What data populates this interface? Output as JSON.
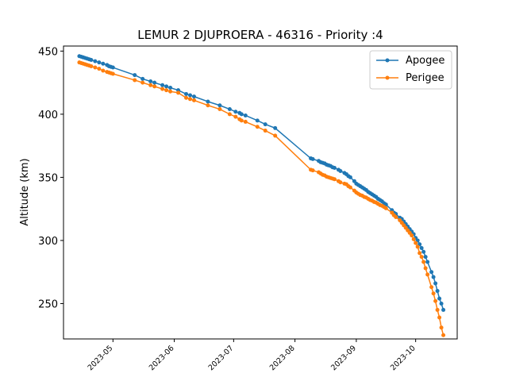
{
  "chart_data": {
    "type": "line",
    "title": "LEMUR 2 DJUPROERA - 46316 - Priority :4",
    "xlabel": "",
    "ylabel": "Altitude (km)",
    "x_tick_labels": [
      "2023-05",
      "2023-06",
      "2023-07",
      "2023-08",
      "2023-09",
      "2023-10"
    ],
    "y_ticks": [
      250,
      300,
      350,
      400,
      450
    ],
    "xlim": [
      "2023-04-06",
      "2023-10-22"
    ],
    "ylim": [
      222,
      454
    ],
    "legend_position": "upper right",
    "series": [
      {
        "name": "Apogee",
        "color": "#1f77b4",
        "points": [
          [
            "2023-04-14",
            446
          ],
          [
            "2023-04-15",
            445.5
          ],
          [
            "2023-04-16",
            445
          ],
          [
            "2023-04-17",
            444.5
          ],
          [
            "2023-04-18",
            444
          ],
          [
            "2023-04-19",
            443.5
          ],
          [
            "2023-04-20",
            443
          ],
          [
            "2023-04-22",
            442
          ],
          [
            "2023-04-24",
            441
          ],
          [
            "2023-04-26",
            440
          ],
          [
            "2023-04-28",
            439
          ],
          [
            "2023-04-29",
            438
          ],
          [
            "2023-04-30",
            437.5
          ],
          [
            "2023-05-01",
            437
          ],
          [
            "2023-05-12",
            431
          ],
          [
            "2023-05-16",
            428
          ],
          [
            "2023-05-20",
            426
          ],
          [
            "2023-05-22",
            425
          ],
          [
            "2023-05-26",
            423
          ],
          [
            "2023-05-28",
            422
          ],
          [
            "2023-05-30",
            421
          ],
          [
            "2023-06-03",
            419
          ],
          [
            "2023-06-07",
            416
          ],
          [
            "2023-06-09",
            415
          ],
          [
            "2023-06-11",
            414
          ],
          [
            "2023-06-18",
            410
          ],
          [
            "2023-06-24",
            407
          ],
          [
            "2023-06-29",
            404
          ],
          [
            "2023-07-02",
            402
          ],
          [
            "2023-07-04",
            401
          ],
          [
            "2023-07-05",
            400
          ],
          [
            "2023-07-07",
            399
          ],
          [
            "2023-07-13",
            395
          ],
          [
            "2023-07-17",
            392
          ],
          [
            "2023-07-22",
            389
          ],
          [
            "2023-08-09",
            365
          ],
          [
            "2023-08-10",
            364.5
          ],
          [
            "2023-08-13",
            363
          ],
          [
            "2023-08-14",
            362
          ],
          [
            "2023-08-15",
            361.5
          ],
          [
            "2023-08-16",
            361
          ],
          [
            "2023-08-17",
            360
          ],
          [
            "2023-08-18",
            359.5
          ],
          [
            "2023-08-19",
            359
          ],
          [
            "2023-08-20",
            358
          ],
          [
            "2023-08-21",
            357.5
          ],
          [
            "2023-08-23",
            356
          ],
          [
            "2023-08-24",
            355
          ],
          [
            "2023-08-26",
            353.5
          ],
          [
            "2023-08-27",
            352.5
          ],
          [
            "2023-08-28",
            351
          ],
          [
            "2023-08-29",
            350
          ],
          [
            "2023-08-31",
            347
          ],
          [
            "2023-09-01",
            345
          ],
          [
            "2023-09-02",
            344
          ],
          [
            "2023-09-03",
            343
          ],
          [
            "2023-09-04",
            342
          ],
          [
            "2023-09-05",
            341
          ],
          [
            "2023-09-06",
            340
          ],
          [
            "2023-09-07",
            338.5
          ],
          [
            "2023-09-08",
            337.5
          ],
          [
            "2023-09-09",
            336.5
          ],
          [
            "2023-09-10",
            335.5
          ],
          [
            "2023-09-11",
            334.5
          ],
          [
            "2023-09-12",
            333
          ],
          [
            "2023-09-13",
            332
          ],
          [
            "2023-09-14",
            331
          ],
          [
            "2023-09-15",
            329.5
          ],
          [
            "2023-09-16",
            328.5
          ],
          [
            "2023-09-19",
            324
          ],
          [
            "2023-09-20",
            322
          ],
          [
            "2023-09-21",
            321
          ],
          [
            "2023-09-23",
            318
          ],
          [
            "2023-09-24",
            317
          ],
          [
            "2023-09-25",
            315
          ],
          [
            "2023-09-26",
            313
          ],
          [
            "2023-09-27",
            311
          ],
          [
            "2023-09-28",
            309
          ],
          [
            "2023-09-29",
            307
          ],
          [
            "2023-09-30",
            305
          ],
          [
            "2023-10-01",
            302
          ],
          [
            "2023-10-02",
            300
          ],
          [
            "2023-10-03",
            297
          ],
          [
            "2023-10-04",
            294
          ],
          [
            "2023-10-05",
            291
          ],
          [
            "2023-10-06",
            287
          ],
          [
            "2023-10-07",
            283
          ],
          [
            "2023-10-09",
            275
          ],
          [
            "2023-10-10",
            271
          ],
          [
            "2023-10-11",
            266
          ],
          [
            "2023-10-12",
            260
          ],
          [
            "2023-10-13",
            254
          ],
          [
            "2023-10-14",
            250
          ],
          [
            "2023-10-15",
            245
          ]
        ]
      },
      {
        "name": "Perigee",
        "color": "#ff7f0e",
        "points": [
          [
            "2023-04-14",
            441
          ],
          [
            "2023-04-15",
            440.5
          ],
          [
            "2023-04-16",
            440
          ],
          [
            "2023-04-17",
            439.5
          ],
          [
            "2023-04-18",
            439
          ],
          [
            "2023-04-19",
            438.5
          ],
          [
            "2023-04-20",
            438
          ],
          [
            "2023-04-22",
            437
          ],
          [
            "2023-04-24",
            436
          ],
          [
            "2023-04-26",
            434.5
          ],
          [
            "2023-04-28",
            433.5
          ],
          [
            "2023-04-29",
            433
          ],
          [
            "2023-04-30",
            432.5
          ],
          [
            "2023-05-01",
            432
          ],
          [
            "2023-05-12",
            427
          ],
          [
            "2023-05-16",
            425
          ],
          [
            "2023-05-20",
            423
          ],
          [
            "2023-05-22",
            422
          ],
          [
            "2023-05-26",
            420
          ],
          [
            "2023-05-28",
            419
          ],
          [
            "2023-05-30",
            418
          ],
          [
            "2023-06-03",
            417
          ],
          [
            "2023-06-07",
            413
          ],
          [
            "2023-06-09",
            412
          ],
          [
            "2023-06-11",
            411
          ],
          [
            "2023-06-18",
            407
          ],
          [
            "2023-06-24",
            404
          ],
          [
            "2023-06-29",
            400
          ],
          [
            "2023-07-02",
            398
          ],
          [
            "2023-07-04",
            396
          ],
          [
            "2023-07-05",
            395
          ],
          [
            "2023-07-07",
            394
          ],
          [
            "2023-07-13",
            390
          ],
          [
            "2023-07-17",
            387
          ],
          [
            "2023-07-22",
            383
          ],
          [
            "2023-08-09",
            356
          ],
          [
            "2023-08-10",
            355.5
          ],
          [
            "2023-08-13",
            354
          ],
          [
            "2023-08-14",
            353
          ],
          [
            "2023-08-15",
            352
          ],
          [
            "2023-08-16",
            351.5
          ],
          [
            "2023-08-17",
            350.5
          ],
          [
            "2023-08-18",
            350
          ],
          [
            "2023-08-19",
            349.5
          ],
          [
            "2023-08-20",
            349
          ],
          [
            "2023-08-21",
            348.5
          ],
          [
            "2023-08-23",
            347
          ],
          [
            "2023-08-24",
            346
          ],
          [
            "2023-08-26",
            345
          ],
          [
            "2023-08-27",
            344.5
          ],
          [
            "2023-08-28",
            343
          ],
          [
            "2023-08-29",
            342
          ],
          [
            "2023-08-31",
            339.5
          ],
          [
            "2023-09-01",
            338
          ],
          [
            "2023-09-02",
            337
          ],
          [
            "2023-09-03",
            336
          ],
          [
            "2023-09-04",
            335.5
          ],
          [
            "2023-09-05",
            334.5
          ],
          [
            "2023-09-06",
            334
          ],
          [
            "2023-09-07",
            333
          ],
          [
            "2023-09-08",
            332
          ],
          [
            "2023-09-09",
            331.5
          ],
          [
            "2023-09-10",
            330.5
          ],
          [
            "2023-09-11",
            330
          ],
          [
            "2023-09-12",
            329
          ],
          [
            "2023-09-13",
            328
          ],
          [
            "2023-09-14",
            327.5
          ],
          [
            "2023-09-15",
            326.5
          ],
          [
            "2023-09-16",
            325.5
          ],
          [
            "2023-09-19",
            322
          ],
          [
            "2023-09-20",
            320
          ],
          [
            "2023-09-21",
            318.5
          ],
          [
            "2023-09-23",
            316
          ],
          [
            "2023-09-24",
            314
          ],
          [
            "2023-09-25",
            312
          ],
          [
            "2023-09-26",
            310
          ],
          [
            "2023-09-27",
            308
          ],
          [
            "2023-09-28",
            306
          ],
          [
            "2023-09-29",
            304
          ],
          [
            "2023-09-30",
            301
          ],
          [
            "2023-10-01",
            298
          ],
          [
            "2023-10-02",
            295
          ],
          [
            "2023-10-03",
            290
          ],
          [
            "2023-10-04",
            287
          ],
          [
            "2023-10-05",
            283
          ],
          [
            "2023-10-06",
            278
          ],
          [
            "2023-10-07",
            273
          ],
          [
            "2023-10-09",
            263
          ],
          [
            "2023-10-10",
            258
          ],
          [
            "2023-10-11",
            252
          ],
          [
            "2023-10-12",
            245
          ],
          [
            "2023-10-13",
            239
          ],
          [
            "2023-10-14",
            231
          ],
          [
            "2023-10-15",
            225
          ]
        ]
      }
    ]
  }
}
